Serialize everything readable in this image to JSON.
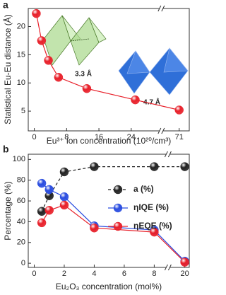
{
  "chart_data": [
    {
      "type": "line",
      "panel_label": "a",
      "xlabel": "Eu³⁺ ion concentration (10²⁰/cm³)",
      "ylabel": "Statistical Eu-Eu distance (Å)",
      "x": [
        0.5,
        1.8,
        3.5,
        6,
        13,
        25,
        71
      ],
      "values": [
        22.3,
        17.5,
        14,
        11,
        9,
        7,
        5.2
      ],
      "color": "#e8202a",
      "linestyle": "solid",
      "xlim": [
        [
          -1.5,
          31
        ],
        [
          67,
          73.5
        ]
      ],
      "xticks": [
        0,
        8,
        16,
        24,
        71
      ],
      "ylim": [
        1.5,
        23.2
      ],
      "yticks": [
        5,
        10,
        15,
        20
      ],
      "annotations": [
        "3.3 Å",
        "4.7 Å"
      ]
    },
    {
      "type": "line",
      "panel_label": "b",
      "xlabel": "Eu₂O₃ concentration (mol%)",
      "ylabel": "Percentage (%)",
      "x": [
        0.5,
        1,
        2,
        4,
        8,
        20
      ],
      "series": [
        {
          "name": "a (%)",
          "color": "#222222",
          "linestyle": "dashed",
          "values": [
            50,
            65,
            88,
            93,
            93,
            93
          ]
        },
        {
          "name": "ηIQE (%)",
          "color": "#2a4de0",
          "linestyle": "solid",
          "values": [
            77,
            71,
            64,
            36,
            32,
            2
          ]
        },
        {
          "name": "ηEQE (%)",
          "color": "#e8202a",
          "linestyle": "solid",
          "values": [
            39,
            51,
            56,
            34,
            30,
            1
          ]
        }
      ],
      "xlim": [
        [
          -0.4,
          8.8
        ],
        [
          19,
          20.3
        ]
      ],
      "xticks": [
        0,
        2,
        4,
        6,
        8,
        20
      ],
      "ylim": [
        -4,
        105
      ],
      "yticks": [
        0,
        20,
        40,
        60,
        80,
        100
      ],
      "legend": "center right"
    }
  ]
}
